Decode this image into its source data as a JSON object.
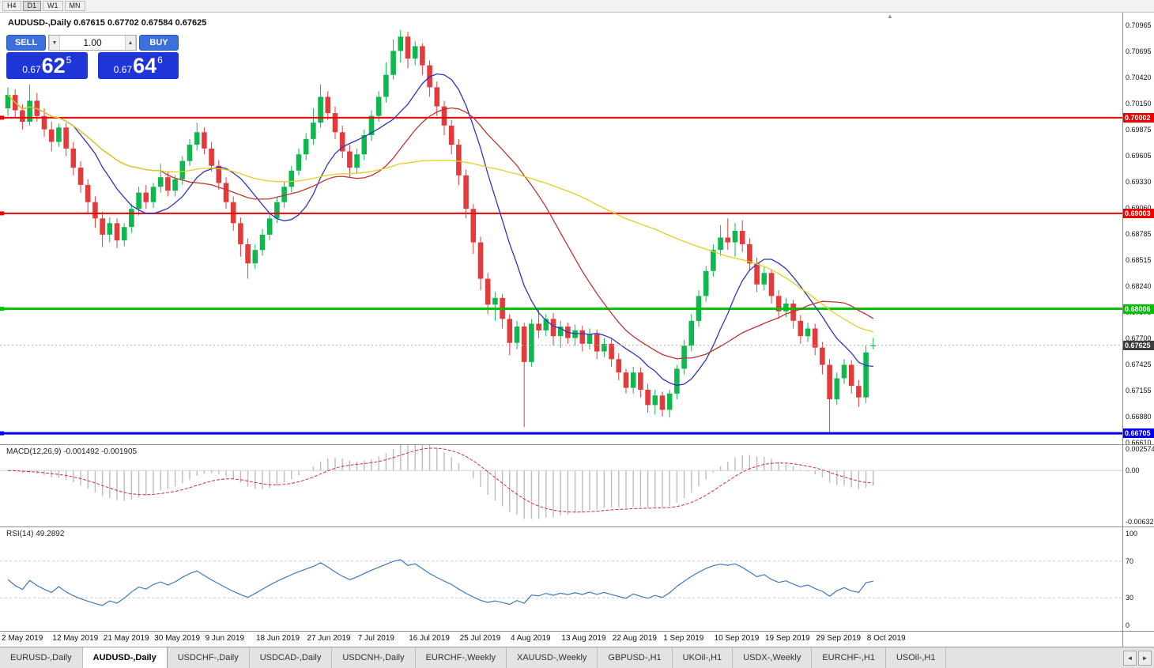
{
  "toolbar": {
    "timeframes": [
      {
        "label": "H4",
        "active": false
      },
      {
        "label": "D1",
        "active": true
      },
      {
        "label": "W1",
        "active": false
      },
      {
        "label": "MN",
        "active": false
      }
    ]
  },
  "icons": {
    "volume_down": "▼",
    "volume_up": "▲",
    "tab_scroll_left": "◄",
    "tab_scroll_right": "►",
    "shift_marker": "▲"
  },
  "trade_panel": {
    "sell_label": "SELL",
    "buy_label": "BUY",
    "volume": "1.00",
    "sell_price": {
      "prefix": "0.67",
      "big": "62",
      "sup": "5"
    },
    "buy_price": {
      "prefix": "0.67",
      "big": "64",
      "sup": "6"
    }
  },
  "chart_data": {
    "type": "candlestick",
    "symbol": "AUDUSD-",
    "period": "Daily",
    "title": "AUDUSD-,Daily  0.67615 0.67702 0.67584 0.67625",
    "ohlc": {
      "open": 0.67615,
      "high": 0.67702,
      "low": 0.67584,
      "close": 0.67625
    },
    "price_range": {
      "top": 0.711,
      "bottom": 0.6659
    },
    "price_axis": [
      0.70965,
      0.70695,
      0.7042,
      0.7015,
      0.69875,
      0.69605,
      0.6933,
      0.6906,
      0.68785,
      0.68515,
      0.6824,
      0.6797,
      0.677,
      0.67425,
      0.67155,
      0.6688,
      0.6661
    ],
    "x_labels": [
      {
        "index": 0,
        "text": "2 May 2019"
      },
      {
        "index": 7,
        "text": "12 May 2019"
      },
      {
        "index": 14,
        "text": "21 May 2019"
      },
      {
        "index": 21,
        "text": "30 May 2019"
      },
      {
        "index": 28,
        "text": "9 Jun 2019"
      },
      {
        "index": 35,
        "text": "18 Jun 2019"
      },
      {
        "index": 42,
        "text": "27 Jun 2019"
      },
      {
        "index": 49,
        "text": "7 Jul 2019"
      },
      {
        "index": 56,
        "text": "16 Jul 2019"
      },
      {
        "index": 63,
        "text": "25 Jul 2019"
      },
      {
        "index": 70,
        "text": "4 Aug 2019"
      },
      {
        "index": 77,
        "text": "13 Aug 2019"
      },
      {
        "index": 84,
        "text": "22 Aug 2019"
      },
      {
        "index": 91,
        "text": "1 Sep 2019"
      },
      {
        "index": 98,
        "text": "10 Sep 2019"
      },
      {
        "index": 105,
        "text": "19 Sep 2019"
      },
      {
        "index": 112,
        "text": "29 Sep 2019"
      },
      {
        "index": 119,
        "text": "8 Oct 2019"
      }
    ],
    "candles": [
      [
        0.701,
        0.7032,
        0.7002,
        0.7024
      ],
      [
        0.7024,
        0.703,
        0.7,
        0.7008
      ],
      [
        0.7008,
        0.7014,
        0.6988,
        0.6996
      ],
      [
        0.6996,
        0.7035,
        0.6992,
        0.7018
      ],
      [
        0.7018,
        0.7026,
        0.6996,
        0.7002
      ],
      [
        0.7002,
        0.701,
        0.698,
        0.6988
      ],
      [
        0.6988,
        0.6996,
        0.6965,
        0.6975
      ],
      [
        0.6975,
        0.6994,
        0.697,
        0.699
      ],
      [
        0.699,
        0.6995,
        0.696,
        0.6968
      ],
      [
        0.6968,
        0.6975,
        0.694,
        0.6948
      ],
      [
        0.6948,
        0.6955,
        0.6922,
        0.693
      ],
      [
        0.693,
        0.6936,
        0.69,
        0.6912
      ],
      [
        0.6912,
        0.6918,
        0.6885,
        0.6895
      ],
      [
        0.6895,
        0.6902,
        0.6865,
        0.6878
      ],
      [
        0.6878,
        0.6896,
        0.687,
        0.689
      ],
      [
        0.689,
        0.6895,
        0.6864,
        0.6872
      ],
      [
        0.6872,
        0.689,
        0.6866,
        0.6886
      ],
      [
        0.6886,
        0.691,
        0.688,
        0.6905
      ],
      [
        0.6905,
        0.6928,
        0.6898,
        0.6922
      ],
      [
        0.6922,
        0.693,
        0.6905,
        0.6912
      ],
      [
        0.6912,
        0.6932,
        0.6906,
        0.6928
      ],
      [
        0.6928,
        0.6952,
        0.6922,
        0.6938
      ],
      [
        0.6938,
        0.6944,
        0.6918,
        0.6924
      ],
      [
        0.6924,
        0.694,
        0.6918,
        0.6936
      ],
      [
        0.6936,
        0.696,
        0.693,
        0.6955
      ],
      [
        0.6955,
        0.6978,
        0.695,
        0.6972
      ],
      [
        0.6972,
        0.6995,
        0.6966,
        0.6985
      ],
      [
        0.6985,
        0.699,
        0.6962,
        0.6968
      ],
      [
        0.6968,
        0.6975,
        0.6944,
        0.695
      ],
      [
        0.695,
        0.6956,
        0.6925,
        0.6932
      ],
      [
        0.6932,
        0.6938,
        0.6905,
        0.6912
      ],
      [
        0.6912,
        0.6918,
        0.6882,
        0.689
      ],
      [
        0.689,
        0.6896,
        0.6855,
        0.6868
      ],
      [
        0.6868,
        0.6874,
        0.6832,
        0.6848
      ],
      [
        0.6848,
        0.6868,
        0.6842,
        0.6862
      ],
      [
        0.6862,
        0.6884,
        0.6856,
        0.6878
      ],
      [
        0.6878,
        0.69,
        0.6872,
        0.6895
      ],
      [
        0.6895,
        0.6918,
        0.689,
        0.6912
      ],
      [
        0.6912,
        0.6934,
        0.6906,
        0.6928
      ],
      [
        0.6928,
        0.695,
        0.6922,
        0.6945
      ],
      [
        0.6945,
        0.6968,
        0.694,
        0.6962
      ],
      [
        0.6962,
        0.6984,
        0.6956,
        0.6978
      ],
      [
        0.6978,
        0.701,
        0.6972,
        0.6995
      ],
      [
        0.6995,
        0.7035,
        0.699,
        0.7022
      ],
      [
        0.7022,
        0.7028,
        0.6998,
        0.7005
      ],
      [
        0.7005,
        0.7012,
        0.6978,
        0.6985
      ],
      [
        0.6985,
        0.6992,
        0.6958,
        0.6965
      ],
      [
        0.6965,
        0.6972,
        0.6938,
        0.6948
      ],
      [
        0.6948,
        0.6968,
        0.6942,
        0.6962
      ],
      [
        0.6962,
        0.6988,
        0.6956,
        0.6982
      ],
      [
        0.6982,
        0.7008,
        0.6976,
        0.7002
      ],
      [
        0.7002,
        0.7028,
        0.6996,
        0.7022
      ],
      [
        0.7022,
        0.7058,
        0.7016,
        0.7045
      ],
      [
        0.7045,
        0.7082,
        0.704,
        0.707
      ],
      [
        0.707,
        0.7092,
        0.7058,
        0.7085
      ],
      [
        0.7085,
        0.709,
        0.7052,
        0.7062
      ],
      [
        0.7062,
        0.708,
        0.7055,
        0.7075
      ],
      [
        0.7075,
        0.7078,
        0.7045,
        0.7055
      ],
      [
        0.7055,
        0.706,
        0.7022,
        0.7032
      ],
      [
        0.7032,
        0.7038,
        0.7002,
        0.7012
      ],
      [
        0.7012,
        0.7018,
        0.6982,
        0.6992
      ],
      [
        0.6992,
        0.6998,
        0.6962,
        0.6972
      ],
      [
        0.6972,
        0.6978,
        0.693,
        0.694
      ],
      [
        0.694,
        0.6946,
        0.6895,
        0.6905
      ],
      [
        0.6905,
        0.691,
        0.6858,
        0.687
      ],
      [
        0.687,
        0.6876,
        0.682,
        0.6832
      ],
      [
        0.6832,
        0.6838,
        0.6795,
        0.6805
      ],
      [
        0.6805,
        0.6818,
        0.6788,
        0.6812
      ],
      [
        0.6812,
        0.6816,
        0.678,
        0.679
      ],
      [
        0.679,
        0.6795,
        0.6752,
        0.6765
      ],
      [
        0.6765,
        0.6788,
        0.6758,
        0.6782
      ],
      [
        0.6782,
        0.6786,
        0.6677,
        0.6745
      ],
      [
        0.6745,
        0.679,
        0.674,
        0.6785
      ],
      [
        0.6785,
        0.68,
        0.677,
        0.6778
      ],
      [
        0.6778,
        0.6795,
        0.6772,
        0.679
      ],
      [
        0.679,
        0.6796,
        0.6762,
        0.6772
      ],
      [
        0.6772,
        0.6788,
        0.676,
        0.6782
      ],
      [
        0.6782,
        0.6786,
        0.6764,
        0.677
      ],
      [
        0.677,
        0.6784,
        0.6762,
        0.6778
      ],
      [
        0.6778,
        0.6783,
        0.6756,
        0.6764
      ],
      [
        0.6764,
        0.678,
        0.6758,
        0.6774
      ],
      [
        0.6774,
        0.6779,
        0.6748,
        0.6756
      ],
      [
        0.6756,
        0.677,
        0.675,
        0.6764
      ],
      [
        0.6764,
        0.6769,
        0.674,
        0.6748
      ],
      [
        0.6748,
        0.6754,
        0.6726,
        0.6734
      ],
      [
        0.6734,
        0.6738,
        0.6712,
        0.6718
      ],
      [
        0.6718,
        0.674,
        0.6712,
        0.6734
      ],
      [
        0.6734,
        0.6739,
        0.6708,
        0.6716
      ],
      [
        0.6716,
        0.6722,
        0.6692,
        0.67
      ],
      [
        0.67,
        0.6716,
        0.669,
        0.671
      ],
      [
        0.671,
        0.6714,
        0.6688,
        0.6695
      ],
      [
        0.6695,
        0.6716,
        0.6687,
        0.6712
      ],
      [
        0.6712,
        0.6742,
        0.6706,
        0.6738
      ],
      [
        0.6738,
        0.6768,
        0.6732,
        0.6762
      ],
      [
        0.6762,
        0.6795,
        0.6756,
        0.6788
      ],
      [
        0.6788,
        0.682,
        0.6782,
        0.6814
      ],
      [
        0.6814,
        0.6845,
        0.6808,
        0.684
      ],
      [
        0.684,
        0.6868,
        0.6834,
        0.6862
      ],
      [
        0.6862,
        0.6888,
        0.6856,
        0.6875
      ],
      [
        0.6875,
        0.6895,
        0.6862,
        0.687
      ],
      [
        0.687,
        0.689,
        0.6855,
        0.6882
      ],
      [
        0.6882,
        0.6893,
        0.686,
        0.6868
      ],
      [
        0.6868,
        0.6874,
        0.684,
        0.6848
      ],
      [
        0.6848,
        0.6854,
        0.6818,
        0.6826
      ],
      [
        0.6826,
        0.6844,
        0.682,
        0.6838
      ],
      [
        0.6838,
        0.6842,
        0.6806,
        0.6814
      ],
      [
        0.6814,
        0.682,
        0.679,
        0.6798
      ],
      [
        0.6798,
        0.6812,
        0.6792,
        0.6806
      ],
      [
        0.6806,
        0.681,
        0.678,
        0.6788
      ],
      [
        0.6788,
        0.6794,
        0.6764,
        0.6772
      ],
      [
        0.6772,
        0.6786,
        0.6766,
        0.678
      ],
      [
        0.678,
        0.6785,
        0.6752,
        0.676
      ],
      [
        0.676,
        0.6766,
        0.6732,
        0.6742
      ],
      [
        0.6742,
        0.6748,
        0.667,
        0.6706
      ],
      [
        0.6706,
        0.6734,
        0.67,
        0.6728
      ],
      [
        0.6728,
        0.6748,
        0.6722,
        0.6742
      ],
      [
        0.6742,
        0.6747,
        0.6712,
        0.672
      ],
      [
        0.672,
        0.6726,
        0.6698,
        0.6708
      ],
      [
        0.6708,
        0.6762,
        0.6702,
        0.6755
      ],
      [
        0.67615,
        0.67702,
        0.67584,
        0.67625
      ]
    ],
    "colors": {
      "up": "#0eb84e",
      "down": "#e33b3b",
      "current_tag": "#3c3c3c",
      "macd_hist": "#bcbcbc",
      "macd_signal": "#d22f2f",
      "rsi_line": "#3d7ab8"
    },
    "moving_averages": [
      {
        "period": 10,
        "color": "#2d35c0"
      },
      {
        "period": 22,
        "color": "#c03434"
      },
      {
        "period": 55,
        "color": "#e3cf20"
      }
    ],
    "hlines": [
      {
        "value": 0.70002,
        "label": "0.70002",
        "color": "#ee0000",
        "width": 2
      },
      {
        "value": 0.69003,
        "label": "0.69003",
        "color": "#ee0000",
        "width": 2
      },
      {
        "value": 0.68006,
        "label": "0.68006",
        "color": "#00c000",
        "width": 3
      },
      {
        "value": 0.66705,
        "label": "0.66705",
        "color": "#0000ee",
        "width": 3
      }
    ],
    "current_price": {
      "value": 0.67625,
      "label": "0.67625"
    },
    "macd": {
      "header": "MACD(12,26,9) -0.001492 -0.001905",
      "fast": 12,
      "slow": 26,
      "signal": 9,
      "range": {
        "top": 0.0031,
        "bottom": -0.0068
      },
      "axis": [
        {
          "value": 0.002574,
          "label": "0.002574"
        },
        {
          "value": 0,
          "label": "0.00"
        },
        {
          "value": -0.006326,
          "label": "-0.006326"
        }
      ]
    },
    "rsi": {
      "header": "RSI(14) 49.2892",
      "period": 14,
      "value": 49.2892,
      "levels": [
        70,
        30
      ],
      "axis": [
        {
          "value": 100,
          "label": "100"
        },
        {
          "value": 70,
          "label": "70"
        },
        {
          "value": 30,
          "label": "30"
        },
        {
          "value": 0,
          "label": "0"
        }
      ]
    }
  },
  "tabs": {
    "items": [
      {
        "label": "EURUSD-,Daily",
        "active": false
      },
      {
        "label": "AUDUSD-,Daily",
        "active": true
      },
      {
        "label": "USDCHF-,Daily",
        "active": false
      },
      {
        "label": "USDCAD-,Daily",
        "active": false
      },
      {
        "label": "USDCNH-,Daily",
        "active": false
      },
      {
        "label": "EURCHF-,Weekly",
        "active": false
      },
      {
        "label": "XAUUSD-,Weekly",
        "active": false
      },
      {
        "label": "GBPUSD-,H1",
        "active": false
      },
      {
        "label": "UKOil-,H1",
        "active": false
      },
      {
        "label": "USDX-,Weekly",
        "active": false
      },
      {
        "label": "EURCHF-,H1",
        "active": false
      },
      {
        "label": "USOil-,H1",
        "active": false
      }
    ]
  }
}
